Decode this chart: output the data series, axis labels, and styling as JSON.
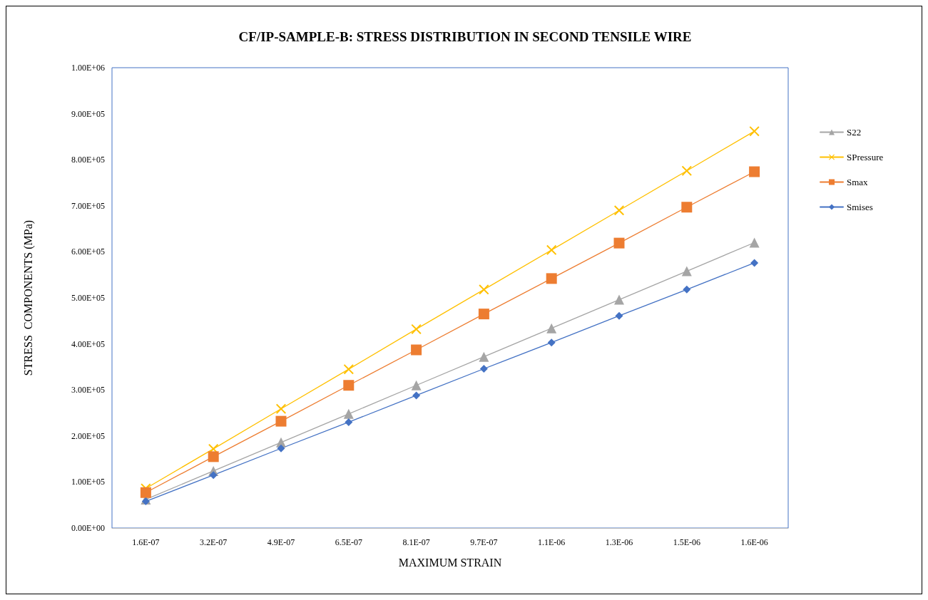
{
  "chart_data": {
    "type": "line",
    "title": "CF/IP-SAMPLE-B: STRESS DISTRIBUTION IN SECOND TENSILE WIRE",
    "xlabel": "MAXIMUM STRAIN",
    "ylabel": "STRESS  COMPONENTS (MPa)",
    "categories": [
      "1.6E-07",
      "3.2E-07",
      "4.9E-07",
      "6.5E-07",
      "8.1E-07",
      "9.7E-07",
      "1.1E-06",
      "1.3E-06",
      "1.5E-06",
      "1.6E-06"
    ],
    "series": [
      {
        "name": "S22",
        "color": "#a5a5a5",
        "marker": "triangle",
        "values": [
          62000,
          124000,
          186000,
          248000,
          310000,
          372000,
          434000,
          496000,
          558000,
          620000
        ]
      },
      {
        "name": "SPressure",
        "color": "#ffc000",
        "marker": "cross",
        "values": [
          86000,
          172000,
          259000,
          345000,
          432000,
          518000,
          604000,
          690000,
          776000,
          862000
        ]
      },
      {
        "name": "Smax",
        "color": "#ed7d31",
        "marker": "square",
        "values": [
          77000,
          155000,
          232000,
          310000,
          387000,
          465000,
          542000,
          619000,
          697000,
          774000
        ]
      },
      {
        "name": "Smises",
        "color": "#4472c4",
        "marker": "diamond",
        "values": [
          58000,
          115000,
          173000,
          230000,
          288000,
          346000,
          403000,
          461000,
          518000,
          576000
        ]
      }
    ],
    "ylim": [
      0,
      1000000
    ],
    "yticks": [
      {
        "value": 0,
        "label": "0.00E+00"
      },
      {
        "value": 100000,
        "label": "1.00E+05"
      },
      {
        "value": 200000,
        "label": "2.00E+05"
      },
      {
        "value": 300000,
        "label": "3.00E+05"
      },
      {
        "value": 400000,
        "label": "4.00E+05"
      },
      {
        "value": 500000,
        "label": "5.00E+05"
      },
      {
        "value": 600000,
        "label": "6.00E+05"
      },
      {
        "value": 700000,
        "label": "7.00E+05"
      },
      {
        "value": 800000,
        "label": "8.00E+05"
      },
      {
        "value": 900000,
        "label": "9.00E+05"
      },
      {
        "value": 1000000,
        "label": "1.00E+06"
      }
    ],
    "grid": false,
    "legend": "right",
    "line_style": "solid"
  }
}
